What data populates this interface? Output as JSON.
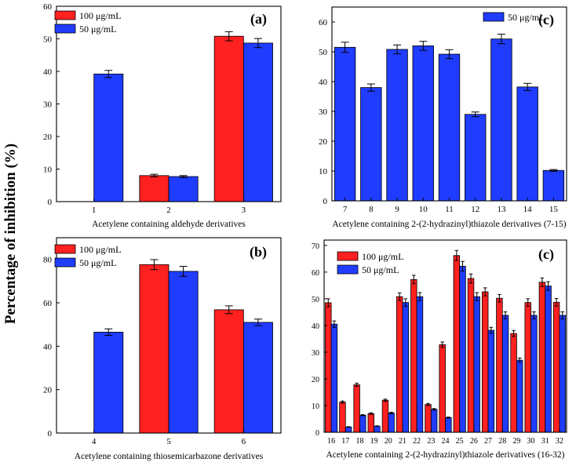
{
  "figure": {
    "ylabel": "Percentage of inhibition  (%)"
  },
  "chart_data": [
    {
      "type": "bar",
      "panel_label": "(a)",
      "xlabel": "Acetylene containing aldehyde derivatives",
      "ylabel": "Percentage of inhibition  (%)",
      "ylim": [
        0,
        60
      ],
      "yticks": [
        0,
        10,
        20,
        30,
        40,
        50,
        60
      ],
      "categories": [
        "1",
        "2",
        "3"
      ],
      "series": [
        {
          "name": "100 μg/mL",
          "color": "#ff2020",
          "values": [
            0,
            8.0,
            50.8
          ],
          "errors": [
            0,
            0.4,
            1.4
          ]
        },
        {
          "name": "50 μg/mL",
          "color": "#1f3cff",
          "values": [
            39.2,
            7.7,
            48.7
          ],
          "errors": [
            1.1,
            0.3,
            1.4
          ]
        }
      ]
    },
    {
      "type": "bar",
      "panel_label": "(c)",
      "xlabel": "Acetylene containing 2-(2-hydrazinyl)thiazole derivatives (7-15)",
      "ylabel": "Percentage of inhibition  (%)",
      "ylim": [
        0,
        65
      ],
      "yticks": [
        0,
        10,
        20,
        30,
        40,
        50,
        60
      ],
      "categories": [
        "7",
        "8",
        "9",
        "10",
        "11",
        "12",
        "13",
        "14",
        "15"
      ],
      "series": [
        {
          "name": "50 μg/mL",
          "color": "#1f3cff",
          "values": [
            51.5,
            38.0,
            50.8,
            52.0,
            49.2,
            29.0,
            54.3,
            38.2,
            10.2
          ],
          "errors": [
            1.7,
            1.2,
            1.5,
            1.5,
            1.5,
            0.8,
            1.6,
            1.2,
            0.3
          ]
        }
      ]
    },
    {
      "type": "bar",
      "panel_label": "(b)",
      "xlabel": "Acetylene containing thiosemicarbazone derivatives",
      "ylabel": "Percentage of inhibition  (%)",
      "ylim": [
        0,
        90
      ],
      "yticks": [
        0,
        20,
        40,
        60,
        80
      ],
      "categories": [
        "4",
        "5",
        "6"
      ],
      "series": [
        {
          "name": "100 μg/mL",
          "color": "#ff2020",
          "values": [
            0,
            77.6,
            56.8
          ],
          "errors": [
            0,
            2.3,
            1.8
          ]
        },
        {
          "name": "50 μg/mL",
          "color": "#1f3cff",
          "values": [
            46.5,
            74.5,
            51.0
          ],
          "errors": [
            1.5,
            2.3,
            1.5
          ]
        }
      ]
    },
    {
      "type": "bar",
      "panel_label": "(c)",
      "xlabel": "Acetylene containing 2-(2-hydrazinyl)thiazole derivatives (16-32)",
      "ylabel": "Percentage of inhibition  (%)",
      "ylim": [
        0,
        72
      ],
      "yticks": [
        0,
        10,
        20,
        30,
        40,
        50,
        60,
        70
      ],
      "categories": [
        "16",
        "17",
        "18",
        "19",
        "20",
        "21",
        "22",
        "23",
        "24",
        "25",
        "26",
        "27",
        "28",
        "29",
        "30",
        "31",
        "32"
      ],
      "series": [
        {
          "name": "100 μg/mL",
          "color": "#ff2020",
          "values": [
            48.5,
            11.3,
            17.8,
            7.0,
            12.0,
            50.8,
            57.2,
            10.4,
            32.8,
            66.2,
            57.6,
            52.6,
            50.2,
            37.0,
            48.6,
            56.2,
            48.7
          ],
          "errors": [
            1.5,
            0.4,
            0.6,
            0.3,
            0.4,
            1.4,
            1.6,
            0.4,
            1.0,
            1.9,
            1.7,
            1.5,
            1.4,
            1.1,
            1.4,
            1.6,
            1.4
          ]
        },
        {
          "name": "50 μg/mL",
          "color": "#1f3cff",
          "values": [
            40.5,
            2.0,
            6.4,
            2.3,
            7.2,
            48.6,
            50.8,
            8.6,
            5.5,
            62.2,
            50.8,
            38.2,
            43.8,
            27.0,
            43.8,
            54.8,
            43.8
          ],
          "errors": [
            1.2,
            0.1,
            0.2,
            0.1,
            0.3,
            1.4,
            1.5,
            0.3,
            0.2,
            1.8,
            1.5,
            1.1,
            1.3,
            0.8,
            1.3,
            1.6,
            1.3
          ]
        }
      ]
    }
  ]
}
